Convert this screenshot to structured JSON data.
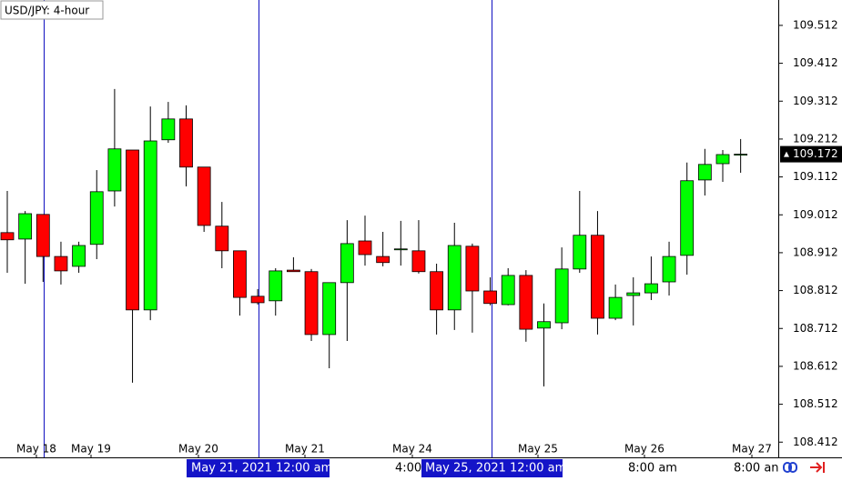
{
  "chart_data": {
    "type": "candlestick",
    "title": "USD/JPY: 4-hour",
    "up_color": "#00ff00",
    "down_color": "#ff0000",
    "open": [
      108.965,
      108.948,
      109.013,
      108.902,
      108.876,
      108.934,
      109.075,
      109.183,
      108.761,
      109.21,
      109.265,
      109.138,
      108.982,
      108.917,
      108.797,
      108.785,
      108.866,
      108.862,
      108.696,
      108.833,
      108.943,
      108.902,
      108.922,
      108.917,
      108.862,
      108.761,
      108.929,
      108.811,
      108.775,
      108.852,
      108.713,
      108.727,
      108.869,
      108.958,
      108.739,
      108.799,
      108.806,
      108.835,
      108.905,
      109.104,
      109.147,
      109.171
    ],
    "high": [
      109.075,
      109.022,
      109.013,
      108.941,
      108.941,
      109.13,
      109.344,
      109.183,
      109.298,
      109.31,
      109.301,
      109.138,
      109.046,
      108.917,
      108.816,
      108.871,
      108.9,
      108.869,
      108.833,
      108.998,
      109.01,
      108.967,
      108.996,
      108.998,
      108.883,
      108.991,
      108.936,
      108.847,
      108.871,
      108.866,
      108.778,
      108.926,
      109.075,
      109.022,
      108.828,
      108.847,
      108.902,
      108.941,
      109.15,
      109.186,
      109.183,
      109.212
    ],
    "low": [
      108.859,
      108.83,
      108.835,
      108.828,
      108.859,
      108.895,
      109.034,
      108.569,
      108.734,
      109.202,
      109.087,
      108.967,
      108.871,
      108.746,
      108.775,
      108.746,
      108.862,
      108.679,
      108.607,
      108.679,
      108.878,
      108.876,
      108.878,
      108.857,
      108.696,
      108.708,
      108.701,
      108.773,
      108.773,
      108.677,
      108.559,
      108.71,
      108.859,
      108.696,
      108.734,
      108.72,
      108.787,
      108.799,
      108.854,
      109.063,
      109.099,
      109.123
    ],
    "close": [
      108.946,
      109.015,
      108.902,
      108.864,
      108.931,
      109.073,
      109.186,
      108.761,
      109.207,
      109.265,
      109.138,
      108.984,
      108.917,
      108.794,
      108.78,
      108.864,
      108.862,
      108.696,
      108.833,
      108.936,
      108.907,
      108.886,
      108.922,
      108.862,
      108.761,
      108.931,
      108.811,
      108.778,
      108.852,
      108.71,
      108.73,
      108.869,
      108.958,
      108.739,
      108.794,
      108.806,
      108.83,
      108.902,
      109.102,
      109.145,
      109.171,
      109.172
    ],
    "ylim": [
      108.379,
      109.579
    ],
    "yticks": [
      108.412,
      108.512,
      108.612,
      108.712,
      108.812,
      108.912,
      109.012,
      109.112,
      109.212,
      109.312,
      109.412,
      109.512
    ],
    "last_price": 109.172,
    "x_labels": [
      "May 18",
      "May 19",
      "May 20",
      "May 21",
      "May 24",
      "May 25",
      "May 26",
      "May 27"
    ],
    "cursor_labels": [
      "May 21, 2021 12:00 am",
      "May 25, 2021 12:00 am"
    ],
    "time_labels": [
      "4:00",
      "8:00 am",
      "8:00 an"
    ]
  }
}
